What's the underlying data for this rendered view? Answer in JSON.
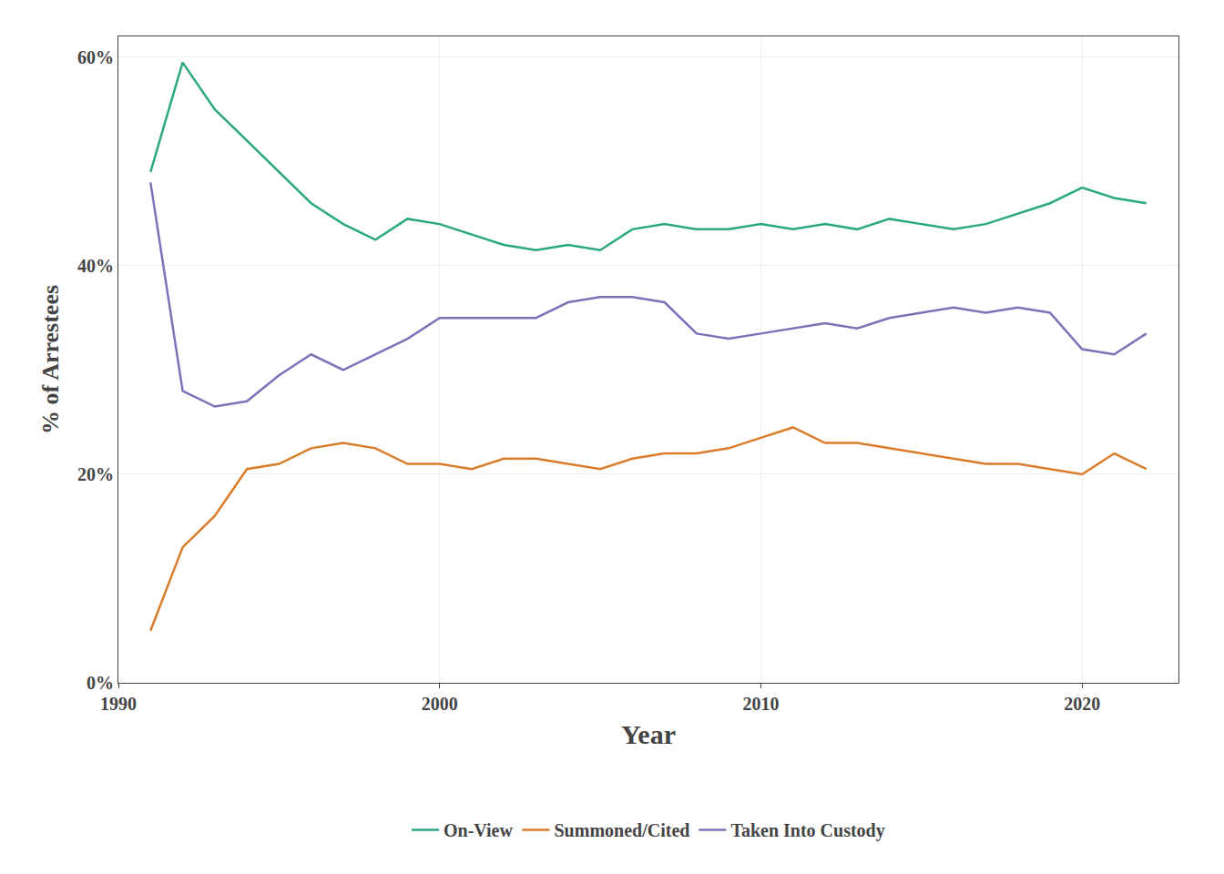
{
  "chart_data": {
    "type": "line",
    "x": [
      1991,
      1992,
      1993,
      1994,
      1995,
      1996,
      1997,
      1998,
      1999,
      2000,
      2001,
      2002,
      2003,
      2004,
      2005,
      2006,
      2007,
      2008,
      2009,
      2010,
      2011,
      2012,
      2013,
      2014,
      2015,
      2016,
      2017,
      2018,
      2019,
      2020,
      2021,
      2022
    ],
    "series": [
      {
        "name": "On-View",
        "color": "#2ca87f",
        "values": [
          49,
          59.5,
          55,
          52,
          49,
          46,
          44,
          42.5,
          44.5,
          44,
          43,
          42,
          41.5,
          42,
          41.5,
          43.5,
          44,
          43.5,
          43.5,
          44,
          43.5,
          44,
          43.5,
          44.5,
          44,
          43.5,
          44,
          45,
          46,
          47.5,
          46.5,
          46
        ]
      },
      {
        "name": "Summoned/Cited",
        "color": "#d97c2a",
        "values": [
          5,
          13,
          16,
          20.5,
          21,
          22.5,
          23,
          22.5,
          21,
          21,
          20.5,
          21.5,
          21.5,
          21,
          20.5,
          21.5,
          22,
          22,
          22.5,
          23.5,
          24.5,
          23,
          23,
          22.5,
          22,
          21.5,
          21,
          21,
          20.5,
          20,
          22,
          20.5
        ]
      },
      {
        "name": "Taken Into Custody",
        "color": "#7b72b8",
        "values": [
          48,
          28,
          26.5,
          27,
          29.5,
          31.5,
          30,
          31.5,
          33,
          35,
          35,
          35,
          35,
          36.5,
          37,
          37,
          36.5,
          33.5,
          33,
          33.5,
          34,
          34.5,
          34,
          35,
          35.5,
          36,
          35.5,
          36,
          35.5,
          32,
          31.5,
          33.5
        ]
      }
    ],
    "xlabel": "Year",
    "ylabel": "% of Arrestees",
    "xlim": [
      1990,
      2023
    ],
    "xticks": [
      1990,
      2000,
      2010,
      2020
    ],
    "ylim": [
      0,
      62
    ],
    "yticks": [
      {
        "value": 0,
        "label": "0%"
      },
      {
        "value": 20,
        "label": "20%"
      },
      {
        "value": 40,
        "label": "40%"
      },
      {
        "value": 60,
        "label": "60%"
      }
    ],
    "grid": true,
    "legend": "bottom"
  }
}
